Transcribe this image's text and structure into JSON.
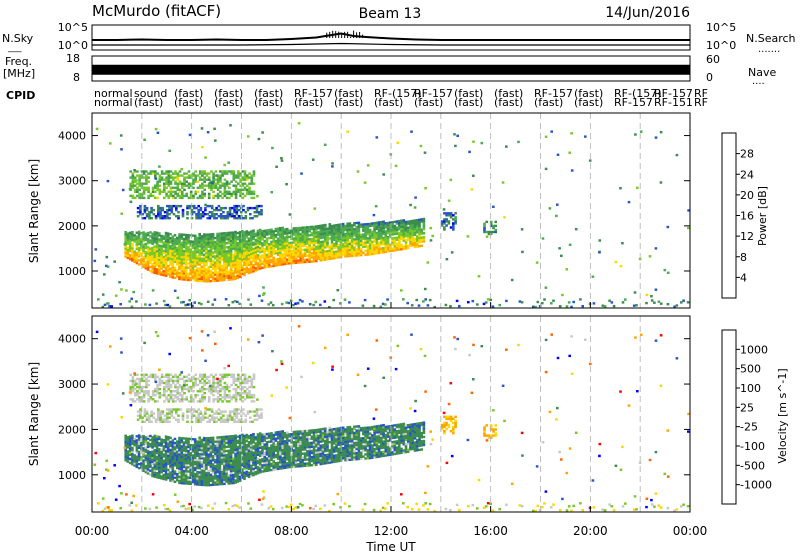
{
  "header": {
    "station": "McMurdo (fitACF)",
    "beam": "Beam 13",
    "date": "14/Jun/2016"
  },
  "colors": {
    "axis": "#000000",
    "gridline": "#b0b0b0",
    "noise_sky": "#000000",
    "power_bar": [
      "#0000ff",
      "#2a55c8",
      "#3c8c50",
      "#4caa50",
      "#78c828",
      "#ffd700",
      "#ffa500",
      "#ff5a00",
      "#ff0000"
    ],
    "velocity_bar": [
      "#ff0000",
      "#ff6400",
      "#ffa500",
      "#ffd700",
      "#c8c8c8",
      "#78c828",
      "#3c8c50",
      "#2a55c8",
      "#0000ff"
    ]
  },
  "chart_data": [
    {
      "type": "line",
      "panel": "noise",
      "left_label": "N.Sky",
      "right_label": "N.Search",
      "left_ticks": [
        "10^5",
        "10^0"
      ],
      "right_ticks": [
        "10^5",
        "10^0"
      ],
      "series": [
        {
          "name": "N.Sky",
          "x_hours": [
            0,
            1,
            2,
            3,
            4,
            5,
            6,
            7,
            8,
            9,
            9.5,
            10,
            10.5,
            11,
            12,
            13,
            14,
            16,
            18,
            20,
            22,
            24
          ],
          "log10_values": [
            2.0,
            2.0,
            2.1,
            2.0,
            2.0,
            2.1,
            2.0,
            2.0,
            2.2,
            2.5,
            2.9,
            3.3,
            2.8,
            2.6,
            2.3,
            2.1,
            2.0,
            2.0,
            2.0,
            2.0,
            2.0,
            2.0
          ]
        },
        {
          "name": "N.Search",
          "x_hours": [
            0,
            2,
            4,
            6,
            8,
            10,
            12,
            14,
            16,
            18,
            20,
            22,
            24
          ],
          "log10_values": [
            1.0,
            1.0,
            1.0,
            1.0,
            1.1,
            1.3,
            1.1,
            1.0,
            1.0,
            1.0,
            1.0,
            1.0,
            1.0
          ]
        }
      ]
    },
    {
      "type": "line",
      "panel": "frequency",
      "left_label": "Freq. [MHz]",
      "right_label": "Nave",
      "left_ticks": [
        "18",
        "8"
      ],
      "right_ticks": [
        "60",
        "0"
      ],
      "frequency_mhz": 12.5,
      "ylim_mhz": [
        8,
        18
      ],
      "nave_ylim": [
        0,
        60
      ]
    },
    {
      "type": "table",
      "panel": "cpid",
      "label": "CPID",
      "row1": [
        "normal",
        "sound",
        "(fast)",
        "(fast)",
        "(fast)",
        "RF-157",
        "(fast)",
        "RF-(157)",
        "RF-157",
        "(fast)",
        "(fast)",
        "RF-157",
        "(fast)",
        "RF-(157)",
        "RF-157",
        "RF"
      ],
      "row2": [
        "normal",
        "(fast)",
        "(fast)",
        "(fast)",
        "(fast)",
        "(fast)",
        "(fast)",
        "(fast)",
        "(fast)",
        "(fast)",
        "(fast)",
        "(fast)",
        "(fast)",
        "RF-157",
        "RF-151",
        "RF"
      ]
    },
    {
      "type": "heatmap",
      "panel": "power",
      "ylabel": "Slant Range [km]",
      "yticks": [
        1000,
        2000,
        3000,
        4000
      ],
      "ylim": [
        180,
        4500
      ],
      "xlim_hours": [
        0,
        24
      ],
      "colorbar_label": "Power [dB]",
      "colorbar_ticks": [
        4,
        8,
        12,
        16,
        20,
        24,
        28
      ],
      "colorbar_range": [
        0,
        32
      ]
    },
    {
      "type": "heatmap",
      "panel": "velocity",
      "ylabel": "Slant Range [km]",
      "yticks": [
        1000,
        2000,
        3000,
        4000
      ],
      "ylim": [
        180,
        4500
      ],
      "xlim_hours": [
        0,
        24
      ],
      "xlabel": "Time UT",
      "xticks": [
        "00:00",
        "04:00",
        "08:00",
        "12:00",
        "16:00",
        "20:00",
        "00:00"
      ],
      "colorbar_label": "Velocity [m s^-1]",
      "colorbar_ticks": [
        "1000",
        "500",
        "100",
        "25",
        "-25",
        "-100",
        "-500",
        "-1000"
      ]
    }
  ],
  "echo_regions": [
    {
      "name": "main-low",
      "t0": 1.3,
      "t1": 13.3,
      "r_bottom": [
        1300,
        950,
        800,
        750,
        800,
        1050,
        1150,
        1200,
        1300,
        1350,
        1450,
        1550
      ],
      "r_top": [
        1850,
        1850,
        1800,
        1800,
        1850,
        1900,
        1950,
        2000,
        2050,
        2050,
        2100,
        2150
      ],
      "core_power": 27,
      "core_vel_band": 6
    },
    {
      "name": "upper-band",
      "t0": 1.5,
      "t1": 6.5,
      "r0": 2600,
      "r1": 3200,
      "power": 14,
      "vel_band": 4
    },
    {
      "name": "mid-band",
      "t0": 1.8,
      "t1": 6.8,
      "r0": 2150,
      "r1": 2450,
      "power": 6,
      "vel_band": 4
    },
    {
      "name": "patch-14h",
      "t0": 14.0,
      "t1": 14.6,
      "r0": 1900,
      "r1": 2300,
      "power": 7,
      "vel_band": 2
    },
    {
      "name": "patch-16h",
      "t0": 15.7,
      "t1": 16.2,
      "r0": 1800,
      "r1": 2100,
      "power": 9,
      "vel_band": 2
    }
  ]
}
